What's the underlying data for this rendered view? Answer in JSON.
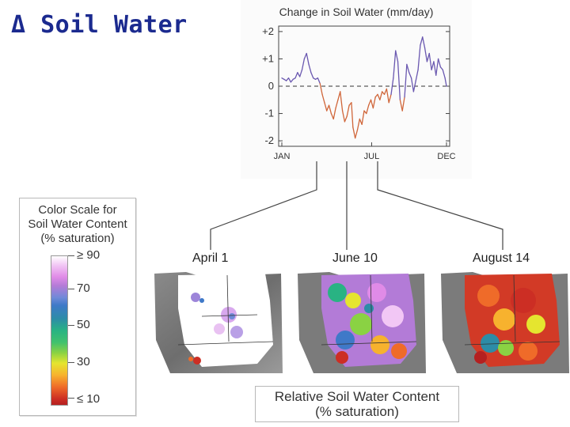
{
  "slide": {
    "title": "Δ Soil Water"
  },
  "chart_data": {
    "type": "line",
    "title": "Change in Soil Water (mm/day)",
    "x_tick_labels": [
      "JAN",
      "JUL",
      "DEC"
    ],
    "y_tick_labels": [
      "+2",
      "+1",
      "0",
      "-1",
      "-2"
    ],
    "yticks": [
      2,
      1,
      0,
      -1,
      -2
    ],
    "ylim": [
      -2.2,
      2.2
    ],
    "xlim": [
      0,
      11
    ],
    "zero_line": "dashed",
    "positive_color": "#6a58b0",
    "negative_color": "#d0663a",
    "series": [
      {
        "x": [
          0,
          0.15,
          0.3,
          0.45,
          0.6,
          0.75,
          0.9,
          1.05,
          1.2,
          1.35,
          1.5,
          1.65,
          1.8,
          1.95,
          2.1,
          2.25,
          2.4,
          2.55,
          2.7,
          2.85,
          3.0,
          3.15,
          3.3,
          3.45,
          3.6,
          3.75,
          3.9,
          4.05,
          4.2,
          4.35,
          4.5,
          4.65,
          4.75,
          4.9,
          5.05,
          5.2,
          5.35,
          5.5,
          5.65,
          5.8,
          5.95,
          6.1,
          6.25,
          6.4,
          6.55,
          6.7,
          6.85,
          7.0,
          7.15,
          7.3,
          7.45,
          7.6,
          7.75,
          7.9,
          8.05,
          8.2,
          8.35,
          8.5,
          8.65,
          8.8,
          8.95,
          9.1,
          9.25,
          9.4,
          9.55,
          9.7,
          9.85,
          10.0,
          10.15,
          10.3,
          10.45,
          10.6,
          10.75,
          10.9,
          11.0
        ],
        "y": [
          0.3,
          0.25,
          0.2,
          0.3,
          0.15,
          0.25,
          0.3,
          0.5,
          0.35,
          0.6,
          1.0,
          1.2,
          0.8,
          0.5,
          0.3,
          0.25,
          0.3,
          0.1,
          -0.3,
          -0.6,
          -0.9,
          -0.7,
          -1.0,
          -1.2,
          -0.8,
          -0.5,
          -0.2,
          -0.9,
          -1.3,
          -1.1,
          -0.7,
          -0.6,
          -1.5,
          -1.9,
          -1.6,
          -1.2,
          -1.4,
          -0.9,
          -1.0,
          -0.7,
          -0.5,
          -0.8,
          -0.4,
          -0.3,
          -0.5,
          -0.2,
          -0.3,
          -0.1,
          -0.6,
          -0.3,
          0.3,
          1.3,
          0.9,
          -0.5,
          -0.9,
          -0.4,
          0.8,
          0.5,
          0.3,
          -0.2,
          0.2,
          0.6,
          1.5,
          1.8,
          1.4,
          0.9,
          1.2,
          0.6,
          0.9,
          0.4,
          1.0,
          0.7,
          0.6,
          0.3,
          0.0
        ]
      }
    ]
  },
  "legend": {
    "title_lines": [
      "Color Scale for",
      "Soil Water Content",
      "(% saturation)"
    ],
    "labels": [
      "≥ 90",
      "70",
      "50",
      "30",
      "≤ 10"
    ]
  },
  "maps": [
    {
      "label": "April 1"
    },
    {
      "label": "June 10"
    },
    {
      "label": "August 14"
    }
  ],
  "caption": {
    "line1": "Relative Soil Water Content",
    "line2": "(% saturation)"
  }
}
